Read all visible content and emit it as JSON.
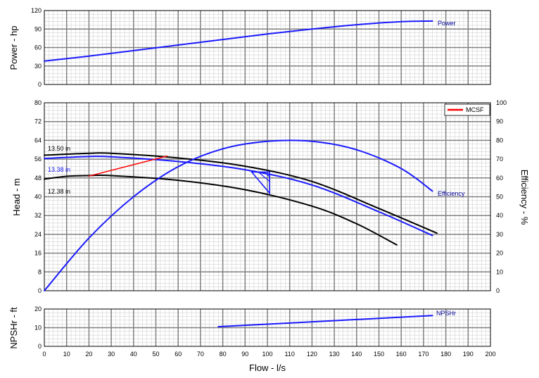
{
  "colors": {
    "black_curve": "#000000",
    "blue_curve": "#1a1aff",
    "mcsf": "#ff0000",
    "grid_major": "#808080",
    "grid_minor": "#c8c8c8",
    "label_blue": "#000099"
  },
  "chart_data": [
    {
      "type": "line",
      "title": "",
      "xlabel": "Flow - l/s",
      "ylabel": "Power - hp",
      "xlim": [
        0,
        200
      ],
      "ylim": [
        0,
        120
      ],
      "xticks": [
        "0",
        "10",
        "20",
        "30",
        "40",
        "50",
        "60",
        "70",
        "80",
        "90",
        "100",
        "110",
        "120",
        "130",
        "140",
        "150",
        "160",
        "170",
        "180",
        "190",
        "200"
      ],
      "yticks": [
        "0",
        "30",
        "60",
        "90",
        "120"
      ],
      "series": [
        {
          "name": "Power",
          "color": "#1a1aff",
          "points": [
            [
              0,
              38
            ],
            [
              20,
              46
            ],
            [
              40,
              55
            ],
            [
              60,
              64
            ],
            [
              80,
              73
            ],
            [
              100,
              82
            ],
            [
              120,
              90
            ],
            [
              140,
              97
            ],
            [
              160,
              102
            ],
            [
              174,
              103
            ]
          ]
        }
      ]
    },
    {
      "type": "line",
      "title": "",
      "xlabel": "Flow - l/s",
      "ylabel": "Head - m",
      "y2label": "Efficiency - %",
      "xlim": [
        0,
        200
      ],
      "ylim": [
        0,
        80
      ],
      "y2lim": [
        0,
        100
      ],
      "yticks": [
        "0",
        "8",
        "16",
        "24",
        "32",
        "40",
        "48",
        "56",
        "64",
        "72",
        "80"
      ],
      "y2ticks": [
        "0",
        "10",
        "20",
        "30",
        "40",
        "50",
        "60",
        "70",
        "80",
        "90",
        "100"
      ],
      "legend": {
        "position": "top-right",
        "entries": [
          "MCSF"
        ]
      },
      "series": [
        {
          "name": "13.50 in",
          "color": "#000000",
          "points": [
            [
              0,
              57.7
            ],
            [
              20,
              58.5
            ],
            [
              30,
              58.5
            ],
            [
              60,
              56.5
            ],
            [
              90,
              53
            ],
            [
              120,
              46.5
            ],
            [
              150,
              35
            ],
            [
              176,
              24.5
            ]
          ]
        },
        {
          "name": "13.38 in",
          "color": "#1a1aff",
          "points": [
            [
              0,
              56.3
            ],
            [
              20,
              57.1
            ],
            [
              30,
              57
            ],
            [
              60,
              55
            ],
            [
              90,
              51.5
            ],
            [
              120,
              45
            ],
            [
              150,
              33.6
            ],
            [
              174,
              23.5
            ]
          ]
        },
        {
          "name": "12.38 in",
          "color": "#000000",
          "points": [
            [
              0,
              47.5
            ],
            [
              10,
              48.7
            ],
            [
              20,
              49
            ],
            [
              30,
              49
            ],
            [
              60,
              47
            ],
            [
              90,
              43
            ],
            [
              120,
              36
            ],
            [
              140,
              28.5
            ],
            [
              158,
              19.5
            ]
          ]
        },
        {
          "name": "Efficiency",
          "axis": "y2",
          "color": "#1a1aff",
          "points": [
            [
              0,
              0
            ],
            [
              20,
              28
            ],
            [
              40,
              50
            ],
            [
              60,
              66
            ],
            [
              80,
              75.5
            ],
            [
              100,
              79.5
            ],
            [
              120,
              79.5
            ],
            [
              140,
              75
            ],
            [
              160,
              65
            ],
            [
              174,
              53
            ]
          ]
        },
        {
          "name": "MCSF",
          "color": "#ff0000",
          "points": [
            [
              20,
              48.8
            ],
            [
              55,
              57.3
            ]
          ]
        }
      ],
      "annotations": [
        "13.50 in",
        "13.38 in",
        "12.38 in",
        "Efficiency"
      ]
    },
    {
      "type": "line",
      "title": "",
      "xlabel": "Flow - l/s",
      "ylabel": "NPSHr - ft",
      "xlim": [
        0,
        200
      ],
      "ylim": [
        0,
        20
      ],
      "yticks": [
        "0",
        "10",
        "20"
      ],
      "series": [
        {
          "name": "NPSHr",
          "color": "#1a1aff",
          "points": [
            [
              78,
              10.5
            ],
            [
              174,
              16.5
            ]
          ]
        }
      ]
    }
  ]
}
